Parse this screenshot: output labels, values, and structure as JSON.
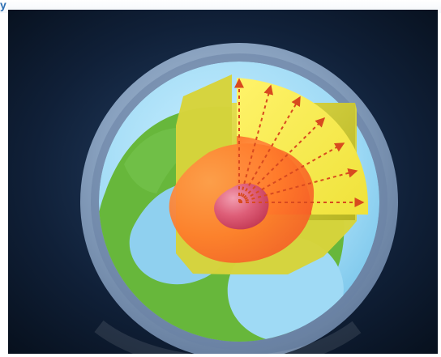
{
  "caption": {
    "fragment": "y"
  },
  "scene": {
    "subject": "earth-interior-cross-section",
    "colors": {
      "background_center": "#27446a",
      "background_edge": "#07101d",
      "outer_ring": "#8ea7c5",
      "ocean": "#9fdaf5",
      "land": "#68b83b",
      "crust": "#d8d23a",
      "mantle": "#f0ec3c",
      "outer_core": "#ff7a2a",
      "inner_core": "#d93c56",
      "arrow": "#d84a1f"
    }
  }
}
